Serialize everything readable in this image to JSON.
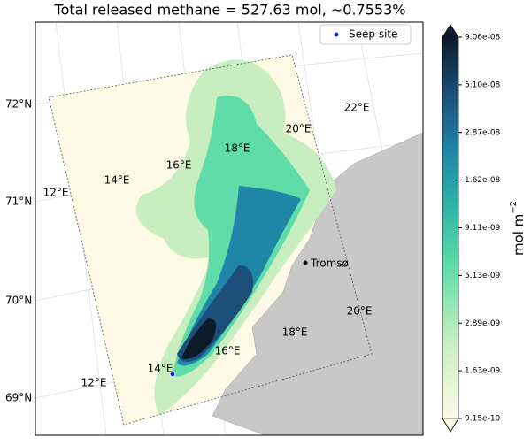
{
  "title": "Total released methane = 527.63 mol,  ~0.7553%",
  "legend": {
    "label": "Seep site"
  },
  "latitude_labels": [
    "72°N",
    "71°N",
    "70°N",
    "69°N"
  ],
  "top_longitude_labels": [
    "12°E",
    "14°E",
    "16°E",
    "18°E",
    "20°E",
    "22°E"
  ],
  "bottom_longitude_labels": [
    "12°E",
    "14°E",
    "16°E",
    "18°E",
    "20°E"
  ],
  "place": "Tromsø",
  "colorbar": {
    "label": "mol m",
    "label_exponent": "−2",
    "ticks": [
      "9.06e-08",
      "5.10e-08",
      "2.87e-08",
      "1.62e-08",
      "9.11e-09",
      "5.13e-09",
      "2.89e-09",
      "1.63e-09",
      "9.15e-10"
    ]
  }
}
